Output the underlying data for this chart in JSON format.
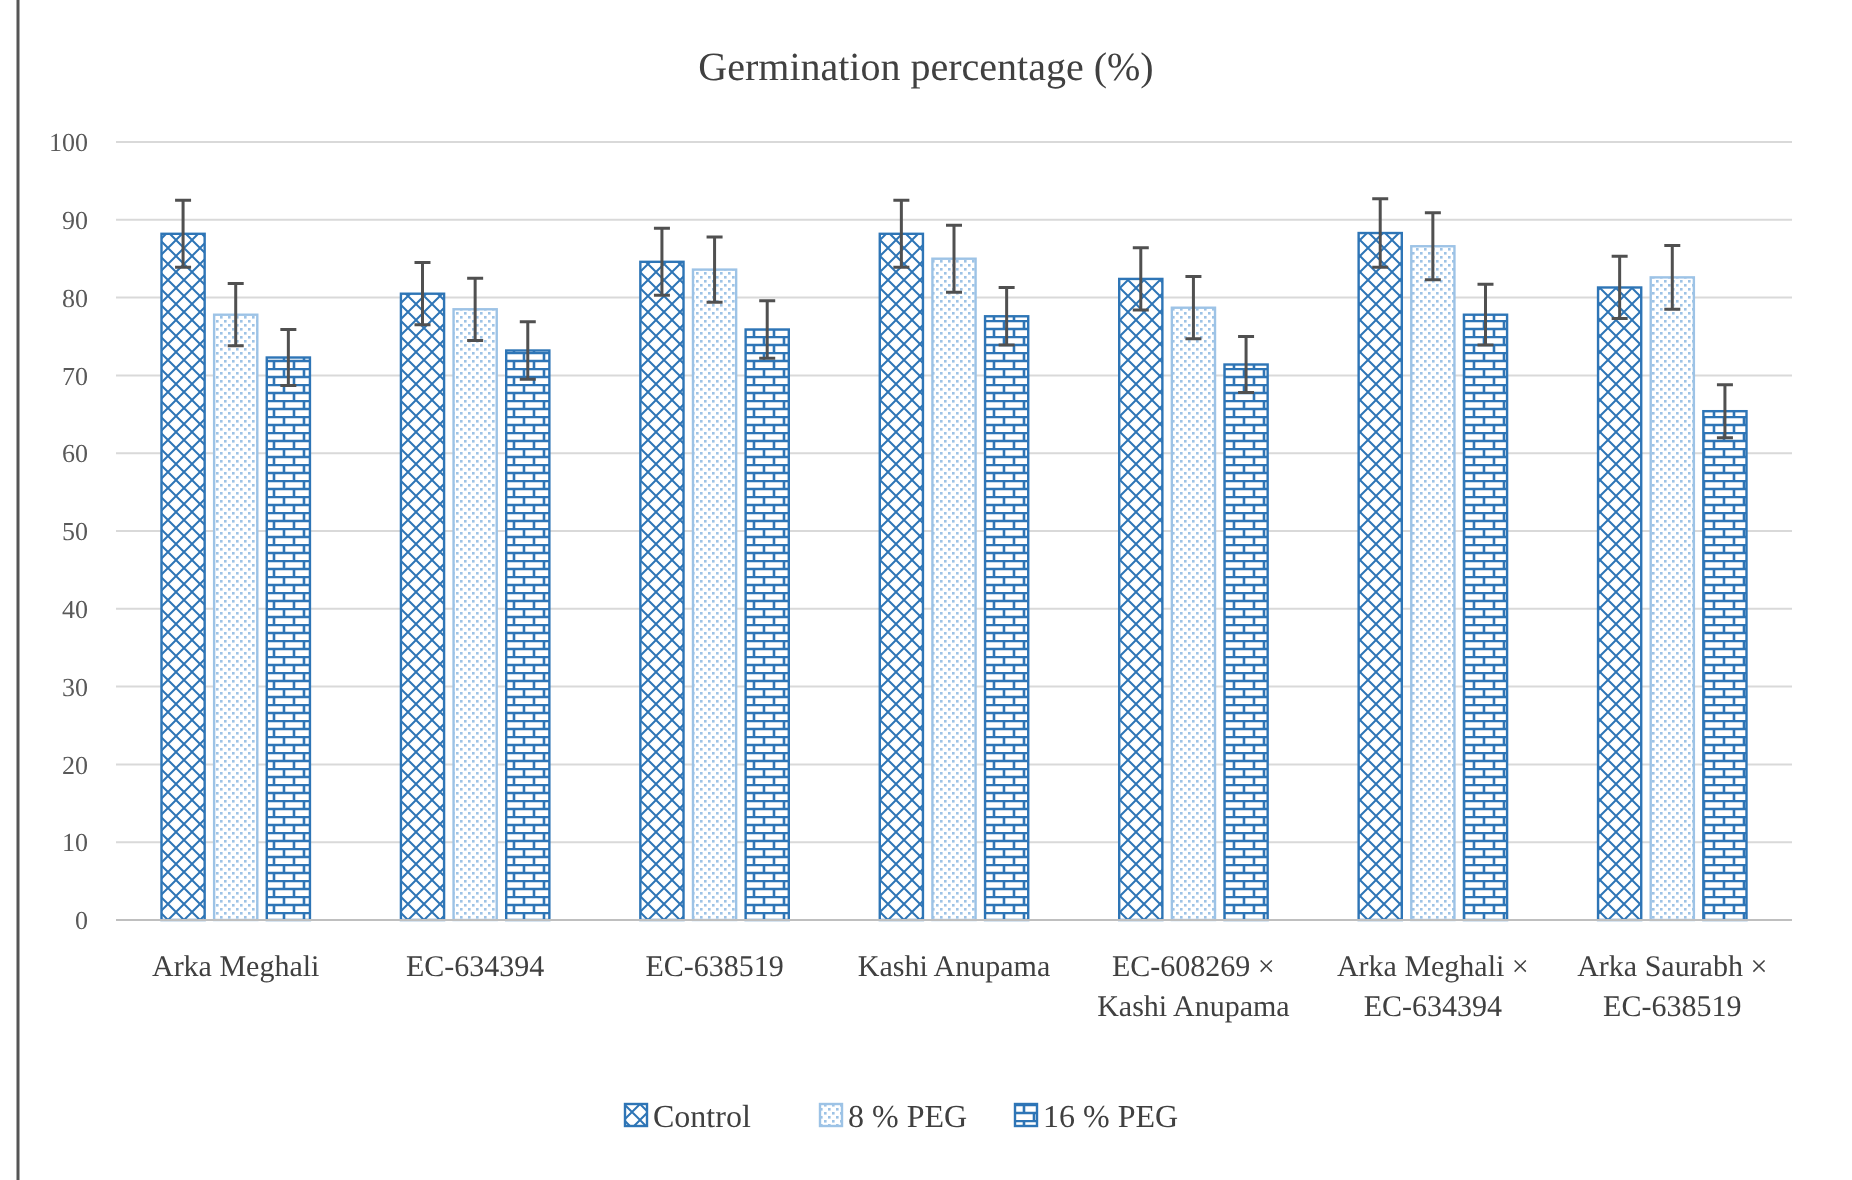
{
  "chart_data": {
    "type": "bar",
    "title": "Germination percentage (%)",
    "categories": [
      "Arka Meghali",
      "EC-634394",
      "EC-638519",
      "Kashi Anupama",
      "EC-608269 × Kashi Anupama",
      "Arka Meghali × EC-634394",
      "Arka Saurabh × EC-638519"
    ],
    "series": [
      {
        "name": "Control",
        "color": "#2e75b6",
        "values": [
          88.2,
          80.5,
          84.6,
          88.2,
          82.4,
          88.3,
          81.3
        ],
        "errors": [
          4.3,
          4,
          4.3,
          4.3,
          4,
          4.4,
          4
        ]
      },
      {
        "name": "8 % PEG",
        "color": "#9dc3e6",
        "values": [
          77.8,
          78.5,
          83.6,
          85,
          78.7,
          86.6,
          82.6
        ],
        "errors": [
          4,
          4,
          4.2,
          4.3,
          4,
          4.3,
          4.1
        ]
      },
      {
        "name": "16 % PEG",
        "color": "#2e75b6",
        "values": [
          72.3,
          73.2,
          75.9,
          77.6,
          71.4,
          77.8,
          65.4
        ],
        "errors": [
          3.6,
          3.7,
          3.7,
          3.7,
          3.6,
          3.9,
          3.4
        ]
      }
    ],
    "ylim": [
      0,
      100
    ],
    "yticks": [
      0,
      10,
      20,
      30,
      40,
      50,
      60,
      70,
      80,
      90,
      100
    ],
    "grid": "y",
    "legend": "bottom"
  }
}
